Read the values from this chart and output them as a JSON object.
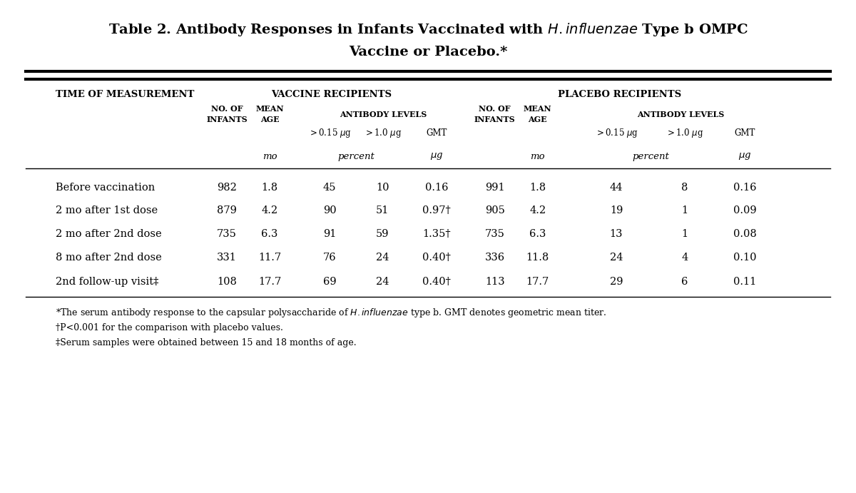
{
  "bg_color": "#ffffff",
  "title_line1": "Table 2. Antibody Responses in Infants Vaccinated with $\\it{H. influenzae}$ Type b OMPC",
  "title_line2": "Vaccine or Placebo.*",
  "rows": [
    {
      "label": "Before vaccination",
      "v_n": "982",
      "v_age": "1.8",
      "v_015": "45",
      "v_10": "10",
      "v_gmt": "0.16",
      "p_n": "991",
      "p_age": "1.8",
      "p_015": "44",
      "p_10": "8",
      "p_gmt": "0.16"
    },
    {
      "label": "2 mo after 1st dose",
      "v_n": "879",
      "v_age": "4.2",
      "v_015": "90",
      "v_10": "51",
      "v_gmt": "0.97†",
      "p_n": "905",
      "p_age": "4.2",
      "p_015": "19",
      "p_10": "1",
      "p_gmt": "0.09"
    },
    {
      "label": "2 mo after 2nd dose",
      "v_n": "735",
      "v_age": "6.3",
      "v_015": "91",
      "v_10": "59",
      "v_gmt": "1.35†",
      "p_n": "735",
      "p_age": "6.3",
      "p_015": "13",
      "p_10": "1",
      "p_gmt": "0.08"
    },
    {
      "label": "8 mo after 2nd dose",
      "v_n": "331",
      "v_age": "11.7",
      "v_015": "76",
      "v_10": "24",
      "v_gmt": "0.40†",
      "p_n": "336",
      "p_age": "11.8",
      "p_015": "24",
      "p_10": "4",
      "p_gmt": "0.10"
    },
    {
      "label": "2nd follow-up visit‡",
      "v_n": "108",
      "v_age": "17.7",
      "v_015": "69",
      "v_10": "24",
      "v_gmt": "0.40†",
      "p_n": "113",
      "p_age": "17.7",
      "p_015": "29",
      "p_10": "6",
      "p_gmt": "0.11"
    }
  ],
  "footnote1": "*The serum antibody response to the capsular polysaccharide of $\\it{H. influenzae}$ type b. GMT denotes geometric mean titer.",
  "footnote2": "†P<0.001 for the comparison with placebo values.",
  "footnote3": "‡Serum samples were obtained between 15 and 18 months of age.",
  "col_x": {
    "label": 0.065,
    "v_n": 0.265,
    "v_age": 0.315,
    "v_015": 0.385,
    "v_10": 0.447,
    "v_gmt": 0.51,
    "p_n": 0.578,
    "p_age": 0.628,
    "p_015": 0.72,
    "p_10": 0.8,
    "p_gmt": 0.87
  },
  "fs_title": 14.0,
  "fs_header1": 9.5,
  "fs_header2": 8.0,
  "fs_header3": 8.5,
  "fs_units": 9.5,
  "fs_data": 10.5,
  "fs_footnote": 9.0
}
